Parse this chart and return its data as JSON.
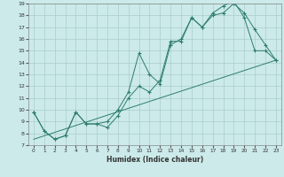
{
  "title": "",
  "xlabel": "Humidex (Indice chaleur)",
  "xlim": [
    -0.5,
    23.5
  ],
  "ylim": [
    7,
    19
  ],
  "xticks": [
    0,
    1,
    2,
    3,
    4,
    5,
    6,
    7,
    8,
    9,
    10,
    11,
    12,
    13,
    14,
    15,
    16,
    17,
    18,
    19,
    20,
    21,
    22,
    23
  ],
  "yticks": [
    7,
    8,
    9,
    10,
    11,
    12,
    13,
    14,
    15,
    16,
    17,
    18,
    19
  ],
  "line_color": "#2e7d6e",
  "bg_color": "#cceaea",
  "grid_color": "#aacccc",
  "line1_x": [
    0,
    1,
    2,
    3,
    4,
    5,
    6,
    7,
    8,
    9,
    10,
    11,
    12,
    13,
    14,
    15,
    16,
    17,
    18,
    19,
    20,
    21,
    22,
    23
  ],
  "line1_y": [
    9.8,
    8.2,
    7.5,
    7.8,
    9.8,
    8.8,
    8.8,
    9.0,
    10.0,
    11.5,
    14.8,
    13.0,
    12.2,
    15.5,
    16.0,
    17.8,
    17.0,
    18.2,
    18.8,
    19.2,
    17.8,
    15.0,
    15.0,
    14.2
  ],
  "line2_x": [
    0,
    1,
    2,
    3,
    4,
    5,
    6,
    7,
    8,
    9,
    10,
    11,
    12,
    13,
    14,
    15,
    16,
    17,
    18,
    19,
    20,
    21,
    22,
    23
  ],
  "line2_y": [
    9.8,
    8.2,
    7.5,
    7.8,
    9.8,
    8.8,
    8.8,
    8.5,
    9.5,
    11.0,
    12.0,
    11.5,
    12.5,
    15.8,
    15.8,
    17.8,
    17.0,
    18.0,
    18.2,
    19.0,
    18.2,
    16.8,
    15.5,
    14.2
  ],
  "line3_x": [
    0,
    23
  ],
  "line3_y": [
    7.5,
    14.2
  ]
}
